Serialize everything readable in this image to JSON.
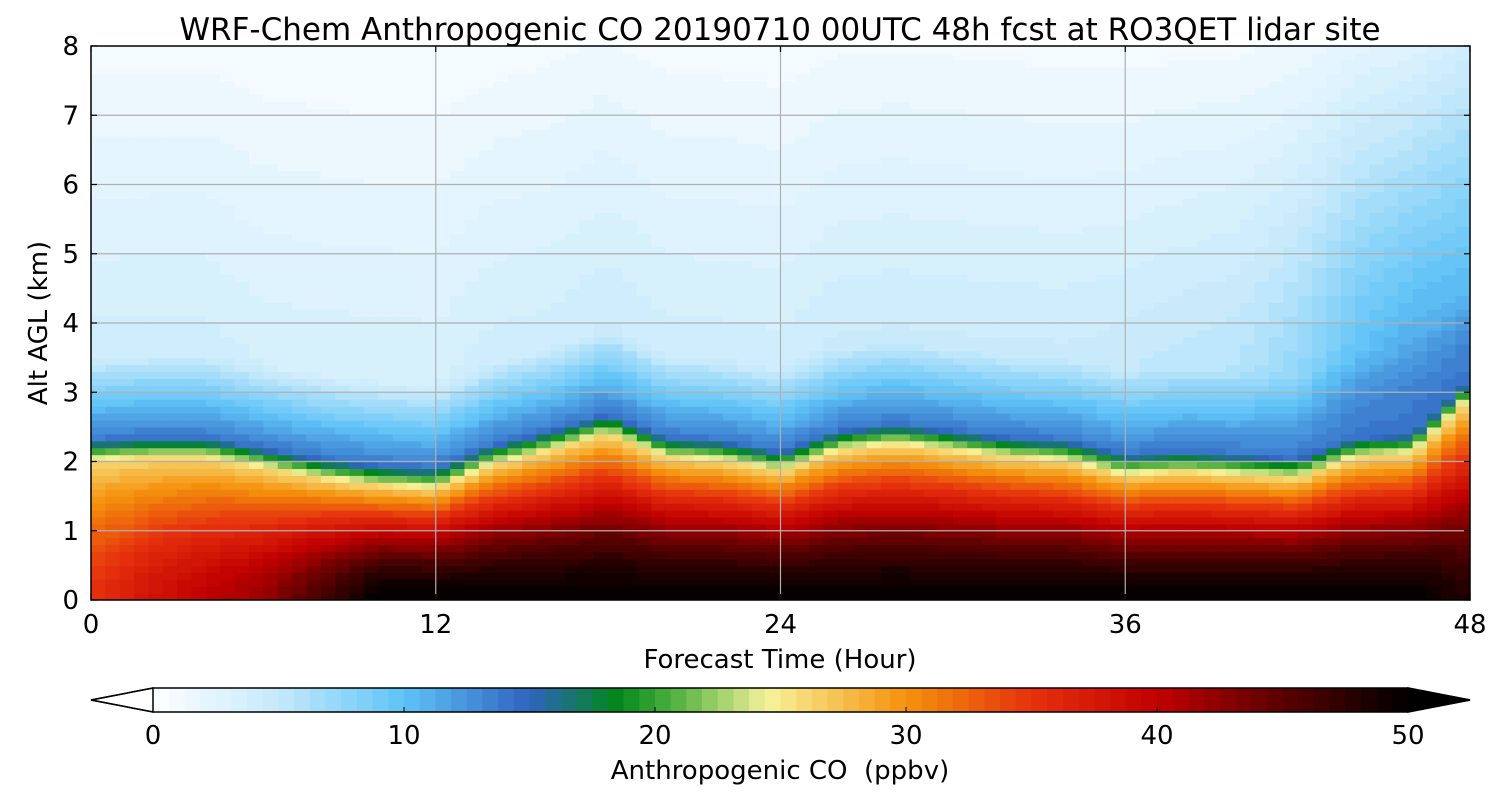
{
  "chart_data": {
    "type": "heatmap",
    "title": "WRF-Chem Anthropogenic CO 20190710 00UTC 48h fcst at RO3QET lidar site",
    "xlabel": "Forecast Time (Hour)",
    "ylabel": "Alt AGL (km)",
    "xlim": [
      0,
      48
    ],
    "ylim": [
      0,
      8
    ],
    "x_ticks": [
      "0",
      "12",
      "24",
      "36",
      "48"
    ],
    "y_ticks": [
      "0",
      "1",
      "2",
      "3",
      "4",
      "5",
      "6",
      "7",
      "8"
    ],
    "grid": true,
    "colorbar": {
      "label": "Anthropogenic CO  (ppbv)",
      "range": [
        0,
        50
      ],
      "ticks": [
        "0",
        "10",
        "20",
        "30",
        "40",
        "50"
      ],
      "extend": "both",
      "levels": 80,
      "anchor_values": [
        0,
        5,
        10,
        15,
        18.5,
        21,
        24.5,
        30,
        35,
        40,
        45,
        50
      ],
      "anchor_colors": [
        "#ffffff",
        "#c4e9fb",
        "#5fc3f7",
        "#2f63c0",
        "#00881a",
        "#5ab545",
        "#f7f29a",
        "#f5920c",
        "#e6310d",
        "#c10000",
        "#5a0000",
        "#000000"
      ]
    },
    "profile_hours": [
      0,
      2,
      4,
      6,
      8,
      10,
      12,
      14,
      16,
      18,
      20,
      22,
      24,
      26,
      28,
      30,
      32,
      34,
      36,
      38,
      40,
      42,
      44,
      46,
      48
    ],
    "boundary_layer_top_km": [
      2.0,
      2.05,
      2.05,
      1.9,
      1.75,
      1.65,
      1.6,
      1.95,
      2.15,
      2.4,
      2.05,
      2.0,
      1.85,
      2.15,
      2.25,
      2.15,
      2.05,
      2.0,
      1.8,
      1.85,
      1.8,
      1.75,
      2.05,
      2.1,
      2.9
    ],
    "surface_co_ppbv": [
      35,
      38,
      40,
      42,
      46,
      50,
      50,
      50,
      50,
      50,
      50,
      50,
      50,
      50,
      50,
      50,
      50,
      50,
      50,
      50,
      50,
      50,
      50,
      50,
      48
    ],
    "free_troposphere_co_ppbv": [
      5,
      5,
      5,
      4.5,
      4.5,
      4.5,
      4.5,
      5,
      5,
      5.5,
      5,
      5,
      5,
      5.5,
      5.5,
      5.5,
      5.5,
      5.5,
      6,
      6.5,
      7,
      9,
      12,
      14,
      13
    ]
  }
}
